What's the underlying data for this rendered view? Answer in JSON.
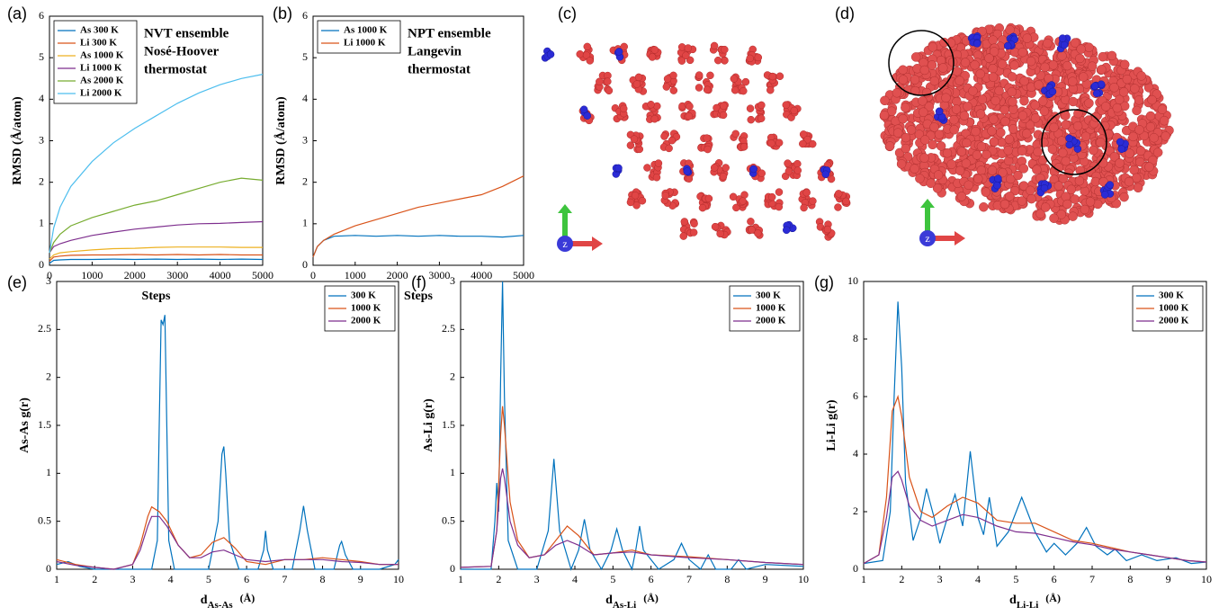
{
  "chart_data": [
    {
      "type": "line",
      "panel_label": "(a)",
      "xlabel": "Steps",
      "ylabel": "RMSD   (Å/atom)",
      "annotation": [
        "NVT ensemble",
        "Nosé-Hoover",
        "thermostat"
      ],
      "legend": "upper left",
      "grid": false,
      "xlim": [
        0,
        5000
      ],
      "xticks": [
        0,
        1000,
        2000,
        3000,
        4000,
        5000
      ],
      "ylim": [
        0,
        6
      ],
      "yticks": [
        0,
        1,
        2,
        3,
        4,
        5,
        6
      ],
      "x": [
        0,
        100,
        250,
        500,
        1000,
        1500,
        2000,
        2500,
        3000,
        3500,
        4000,
        4500,
        5000
      ],
      "series": [
        {
          "name": "As  300 K",
          "color": "#0072bd",
          "values": [
            0.05,
            0.12,
            0.13,
            0.14,
            0.14,
            0.15,
            0.14,
            0.15,
            0.14,
            0.15,
            0.14,
            0.15,
            0.14
          ]
        },
        {
          "name": "Li  300 K",
          "color": "#d95319",
          "values": [
            0.1,
            0.2,
            0.22,
            0.24,
            0.25,
            0.25,
            0.26,
            0.25,
            0.26,
            0.25,
            0.26,
            0.25,
            0.25
          ]
        },
        {
          "name": "As  1000 K",
          "color": "#edb120",
          "values": [
            0.15,
            0.25,
            0.3,
            0.33,
            0.37,
            0.4,
            0.41,
            0.43,
            0.44,
            0.44,
            0.44,
            0.43,
            0.43
          ]
        },
        {
          "name": "Li  1000 K",
          "color": "#7e2f8e",
          "values": [
            0.3,
            0.45,
            0.52,
            0.6,
            0.72,
            0.8,
            0.87,
            0.92,
            0.97,
            1.0,
            1.01,
            1.03,
            1.05
          ]
        },
        {
          "name": "As  2000 K",
          "color": "#77ac30",
          "values": [
            0.3,
            0.55,
            0.75,
            0.95,
            1.15,
            1.3,
            1.45,
            1.55,
            1.7,
            1.85,
            2.0,
            2.1,
            2.05
          ]
        },
        {
          "name": "Li  2000 K",
          "color": "#4dbeee",
          "values": [
            0.3,
            0.9,
            1.4,
            1.9,
            2.5,
            2.95,
            3.3,
            3.6,
            3.9,
            4.15,
            4.35,
            4.5,
            4.6
          ]
        }
      ]
    },
    {
      "type": "line",
      "panel_label": "(b)",
      "xlabel": "Steps",
      "ylabel": "RMSD   (Å/atom)",
      "annotation": [
        "NPT ensemble",
        "Langevin",
        "thermostat"
      ],
      "legend": "upper left",
      "grid": false,
      "xlim": [
        0,
        5000
      ],
      "xticks": [
        0,
        1000,
        2000,
        3000,
        4000,
        5000
      ],
      "ylim": [
        0,
        6
      ],
      "yticks": [
        0,
        1,
        2,
        3,
        4,
        5,
        6
      ],
      "x": [
        0,
        100,
        250,
        500,
        1000,
        1500,
        2000,
        2500,
        3000,
        3500,
        4000,
        4500,
        5000
      ],
      "series": [
        {
          "name": "As 1000 K",
          "color": "#0072bd",
          "values": [
            0.2,
            0.45,
            0.6,
            0.7,
            0.72,
            0.7,
            0.72,
            0.7,
            0.72,
            0.7,
            0.7,
            0.68,
            0.72
          ]
        },
        {
          "name": "Li  1000 K",
          "color": "#d95319",
          "values": [
            0.2,
            0.45,
            0.6,
            0.75,
            0.95,
            1.1,
            1.25,
            1.4,
            1.5,
            1.6,
            1.7,
            1.9,
            2.15
          ]
        }
      ]
    },
    {
      "type": "line",
      "panel_label": "(e)",
      "xlabel": "d",
      "xlabel_sub": "As-As",
      "xlabel_unit": "(Å)",
      "ylabel": "As-As g(r)",
      "legend": "upper right",
      "grid": false,
      "xlim": [
        1,
        10
      ],
      "xticks": [
        1,
        2,
        3,
        4,
        5,
        6,
        7,
        8,
        9,
        10
      ],
      "ylim": [
        0,
        3
      ],
      "yticks": [
        0,
        0.5,
        1,
        1.5,
        2,
        2.5,
        3
      ],
      "series": [
        {
          "name": "300 K",
          "color": "#0072bd",
          "x": [
            1,
            1.3,
            1.6,
            2,
            2.5,
            3,
            3.5,
            3.65,
            3.7,
            3.75,
            3.8,
            3.85,
            3.9,
            3.95,
            4.1,
            4.5,
            5,
            5.25,
            5.35,
            5.4,
            5.45,
            5.55,
            5.8,
            6.3,
            6.45,
            6.5,
            6.55,
            6.7,
            7.2,
            7.4,
            7.5,
            7.6,
            7.8,
            8.3,
            8.45,
            8.5,
            8.6,
            8.8,
            9.5,
            9.9,
            10
          ],
          "values": [
            0.05,
            0.08,
            0.03,
            0,
            0,
            0,
            0,
            0.3,
            1.5,
            2.6,
            2.55,
            2.65,
            1.5,
            0.3,
            0,
            0,
            0,
            0.5,
            1.2,
            1.28,
            1.0,
            0.3,
            0,
            0,
            0.2,
            0.4,
            0.2,
            0,
            0,
            0.4,
            0.66,
            0.4,
            0,
            0,
            0.25,
            0.29,
            0.15,
            0,
            0,
            0.05,
            0.1
          ]
        },
        {
          "name": "1000 K",
          "color": "#d95319",
          "x": [
            1,
            1.5,
            2,
            2.5,
            3,
            3.2,
            3.4,
            3.5,
            3.7,
            3.9,
            4.2,
            4.5,
            4.8,
            5.1,
            5.4,
            5.7,
            6,
            6.5,
            7,
            7.5,
            8,
            8.5,
            9,
            9.5,
            10
          ],
          "values": [
            0.1,
            0.05,
            0.02,
            0,
            0.05,
            0.25,
            0.55,
            0.65,
            0.6,
            0.5,
            0.25,
            0.12,
            0.15,
            0.28,
            0.33,
            0.22,
            0.08,
            0.05,
            0.1,
            0.1,
            0.12,
            0.1,
            0.08,
            0.05,
            0.05
          ]
        },
        {
          "name": "2000 K",
          "color": "#7e2f8e",
          "x": [
            1,
            1.5,
            2,
            2.5,
            3,
            3.2,
            3.4,
            3.5,
            3.7,
            3.9,
            4.2,
            4.5,
            4.8,
            5.1,
            5.4,
            5.7,
            6,
            6.5,
            7,
            7.5,
            8,
            8.5,
            9,
            9.5,
            10
          ],
          "values": [
            0.08,
            0.04,
            0.02,
            0,
            0.05,
            0.2,
            0.45,
            0.55,
            0.55,
            0.45,
            0.25,
            0.12,
            0.12,
            0.18,
            0.2,
            0.15,
            0.1,
            0.08,
            0.1,
            0.1,
            0.1,
            0.08,
            0.07,
            0.05,
            0.05
          ]
        }
      ]
    },
    {
      "type": "line",
      "panel_label": "(f)",
      "xlabel": "d",
      "xlabel_sub": "As-Li",
      "xlabel_unit": "(Å)",
      "ylabel": "As-Li g(r)",
      "legend": "upper right",
      "grid": false,
      "xlim": [
        1,
        10
      ],
      "xticks": [
        1,
        2,
        3,
        4,
        5,
        6,
        7,
        8,
        9,
        10
      ],
      "ylim": [
        0,
        3
      ],
      "yticks": [
        0,
        0.5,
        1,
        1.5,
        2,
        2.5,
        3
      ],
      "series": [
        {
          "name": "300 K",
          "color": "#0072bd",
          "x": [
            1,
            1.8,
            1.9,
            1.95,
            2.0,
            2.05,
            2.1,
            2.15,
            2.25,
            2.5,
            3.0,
            3.3,
            3.45,
            3.6,
            3.9,
            4.1,
            4.25,
            4.4,
            4.7,
            4.95,
            5.1,
            5.25,
            5.5,
            5.6,
            5.7,
            5.8,
            6.2,
            6.6,
            6.8,
            7.0,
            7.3,
            7.5,
            7.7,
            8.1,
            8.3,
            8.5,
            9,
            10
          ],
          "values": [
            0,
            0,
            0.5,
            0.9,
            0.6,
            2.0,
            3.0,
            1.8,
            0.3,
            0,
            0,
            0.4,
            1.15,
            0.4,
            0,
            0.2,
            0.52,
            0.2,
            0,
            0.2,
            0.42,
            0.2,
            0,
            0.2,
            0.45,
            0.2,
            0,
            0.1,
            0.27,
            0.1,
            0,
            0.15,
            0,
            0,
            0.1,
            0,
            0.05,
            0.03
          ]
        },
        {
          "name": "1000 K",
          "color": "#d95319",
          "x": [
            1,
            1.8,
            1.95,
            2.05,
            2.1,
            2.15,
            2.3,
            2.5,
            2.8,
            3.2,
            3.5,
            3.8,
            4.1,
            4.5,
            5,
            5.5,
            6,
            7,
            8,
            9,
            10
          ],
          "values": [
            0.02,
            0.03,
            0.4,
            1.4,
            1.7,
            1.5,
            0.7,
            0.3,
            0.12,
            0.15,
            0.3,
            0.45,
            0.35,
            0.15,
            0.17,
            0.2,
            0.15,
            0.13,
            0.1,
            0.07,
            0.05
          ]
        },
        {
          "name": "2000 K",
          "color": "#7e2f8e",
          "x": [
            1,
            1.8,
            1.95,
            2.05,
            2.1,
            2.15,
            2.3,
            2.5,
            2.8,
            3.2,
            3.5,
            3.8,
            4.1,
            4.5,
            5,
            5.5,
            6,
            7,
            8,
            9,
            10
          ],
          "values": [
            0.02,
            0.03,
            0.4,
            0.95,
            1.05,
            0.95,
            0.5,
            0.25,
            0.12,
            0.15,
            0.25,
            0.3,
            0.25,
            0.15,
            0.17,
            0.18,
            0.15,
            0.12,
            0.1,
            0.07,
            0.05
          ]
        }
      ]
    },
    {
      "type": "line",
      "panel_label": "(g)",
      "xlabel": "d",
      "xlabel_sub": "Li-Li",
      "xlabel_unit": "(Å)",
      "ylabel": "Li-Li g(r)",
      "legend": "upper right",
      "grid": false,
      "xlim": [
        1,
        10
      ],
      "xticks": [
        1,
        2,
        3,
        4,
        5,
        6,
        7,
        8,
        9,
        10
      ],
      "ylim": [
        0,
        10
      ],
      "yticks": [
        0,
        2,
        4,
        6,
        8,
        10
      ],
      "series": [
        {
          "name": "300 K",
          "color": "#0072bd",
          "x": [
            1,
            1.5,
            1.7,
            1.8,
            1.9,
            2.0,
            2.1,
            2.3,
            2.5,
            2.65,
            2.85,
            3.0,
            3.2,
            3.4,
            3.6,
            3.8,
            4.0,
            4.15,
            4.3,
            4.5,
            4.8,
            5.15,
            5.5,
            5.8,
            6.0,
            6.3,
            6.6,
            6.85,
            7.1,
            7.4,
            7.6,
            7.9,
            8.3,
            8.7,
            9.2,
            9.6,
            10
          ],
          "values": [
            0.2,
            0.3,
            2,
            6,
            9.3,
            7,
            3,
            1,
            1.8,
            2.8,
            1.8,
            0.9,
            1.8,
            2.6,
            1.5,
            4.1,
            1.8,
            1.2,
            2.5,
            0.8,
            1.3,
            2.5,
            1.3,
            0.6,
            0.9,
            0.5,
            0.9,
            1.45,
            0.8,
            0.5,
            0.7,
            0.3,
            0.5,
            0.3,
            0.4,
            0.2,
            0.25
          ]
        },
        {
          "name": "1000 K",
          "color": "#d95319",
          "x": [
            1,
            1.4,
            1.6,
            1.75,
            1.9,
            2.0,
            2.2,
            2.5,
            2.8,
            3.2,
            3.6,
            4.0,
            4.5,
            5,
            5.5,
            6,
            6.5,
            7,
            7.5,
            8,
            8.5,
            9,
            9.5,
            10
          ],
          "values": [
            0.2,
            0.5,
            2.5,
            5.5,
            6.0,
            5.3,
            3.2,
            2.0,
            1.8,
            2.2,
            2.5,
            2.3,
            1.7,
            1.6,
            1.6,
            1.3,
            1.0,
            0.9,
            0.75,
            0.6,
            0.5,
            0.4,
            0.3,
            0.25
          ]
        },
        {
          "name": "2000 K",
          "color": "#7e2f8e",
          "x": [
            1,
            1.4,
            1.6,
            1.75,
            1.9,
            2.0,
            2.2,
            2.5,
            2.8,
            3.2,
            3.6,
            4.0,
            4.5,
            5,
            5.5,
            6,
            6.5,
            7,
            7.5,
            8,
            8.5,
            9,
            9.5,
            10
          ],
          "values": [
            0.2,
            0.5,
            1.8,
            3.2,
            3.4,
            3.1,
            2.2,
            1.7,
            1.5,
            1.7,
            1.9,
            1.8,
            1.5,
            1.3,
            1.25,
            1.1,
            0.95,
            0.85,
            0.7,
            0.6,
            0.5,
            0.4,
            0.3,
            0.25
          ]
        }
      ]
    }
  ],
  "images": [
    {
      "panel_label": "(c)",
      "axis_label": "z"
    },
    {
      "panel_label": "(d)",
      "axis_label": "z"
    }
  ]
}
